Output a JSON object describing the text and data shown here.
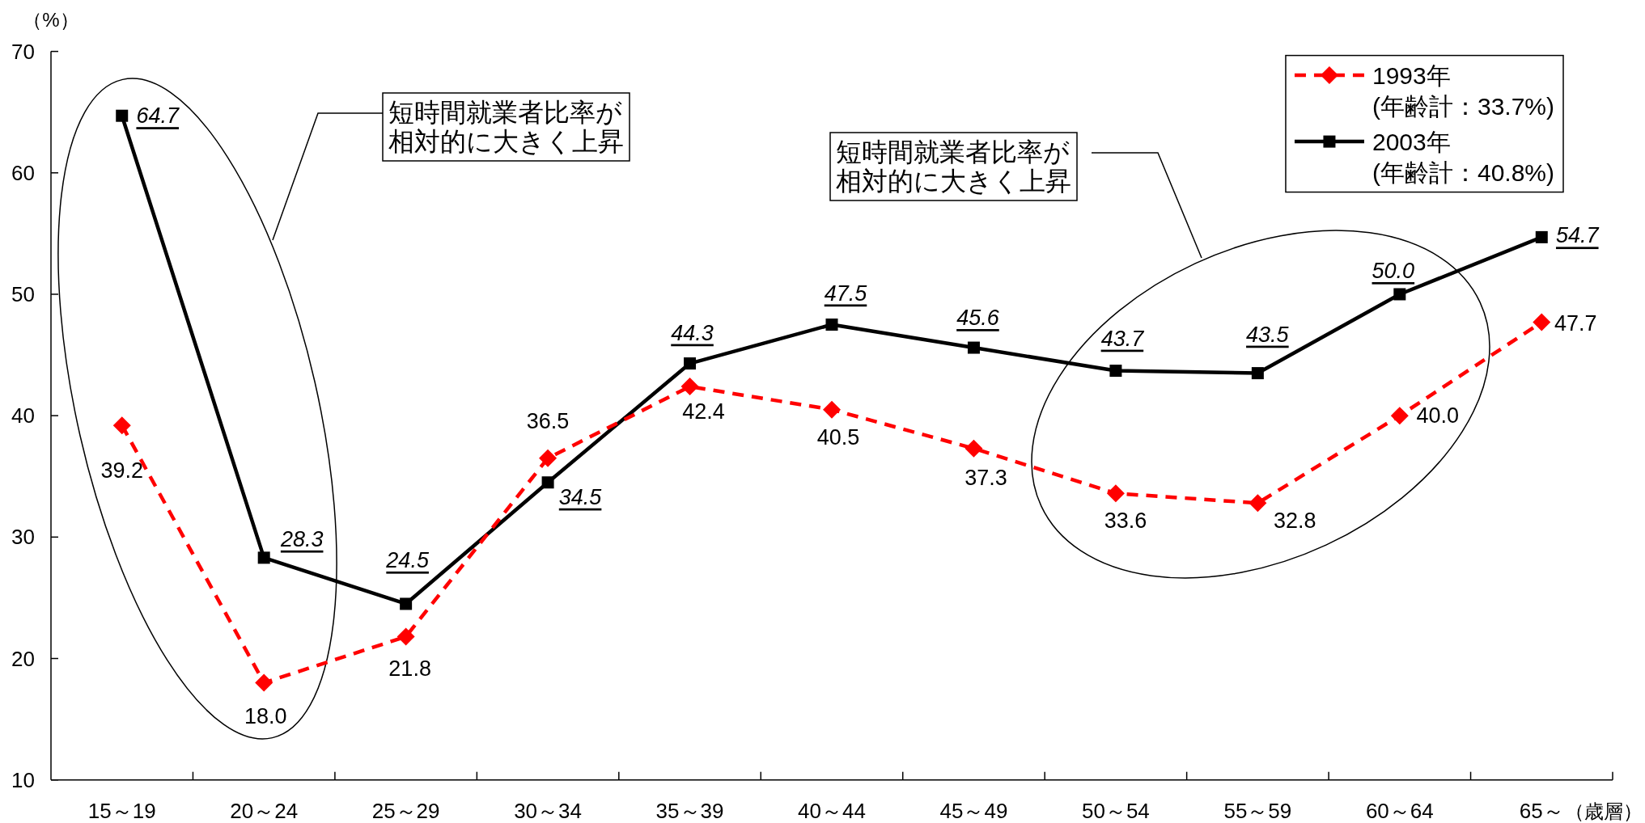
{
  "chart_data": {
    "type": "line",
    "categories": [
      "15～19",
      "20～24",
      "25～29",
      "30～34",
      "35～39",
      "40～44",
      "45～49",
      "50～54",
      "55～59",
      "60～64",
      "65～"
    ],
    "xlabel": "（歳層）",
    "ylabel": "（%）",
    "ylim": [
      10,
      70
    ],
    "yticks": [
      10,
      20,
      30,
      40,
      50,
      60,
      70
    ],
    "legend": "top right",
    "series": [
      {
        "name": "1993年\n(年齢計：33.7%)",
        "color": "#ff0000",
        "marker": "diamond",
        "line_style": "dashed",
        "values": [
          39.2,
          18.0,
          21.8,
          36.5,
          42.4,
          40.5,
          37.3,
          33.6,
          32.8,
          40.0,
          47.7
        ],
        "value_labels": [
          "39.2",
          "18.0",
          "21.8",
          "36.5",
          "42.4",
          "40.5",
          "37.3",
          "33.6",
          "32.8",
          "40.0",
          "47.7"
        ]
      },
      {
        "name": "2003年\n(年齢計：40.8%)",
        "color": "#000000",
        "marker": "square",
        "line_style": "solid",
        "values": [
          64.7,
          28.3,
          24.5,
          34.5,
          44.3,
          47.5,
          45.6,
          43.7,
          43.5,
          50.0,
          54.7
        ],
        "value_labels": [
          "64.7",
          "28.3",
          "24.5",
          "34.5",
          "44.3",
          "47.5",
          "45.6",
          "43.7",
          "43.5",
          "50.0",
          "54.7"
        ]
      }
    ],
    "annotations": [
      "短時間就業者比率が相対的に大きく上昇",
      "短時間就業者比率が相対的に大きく上昇"
    ]
  }
}
